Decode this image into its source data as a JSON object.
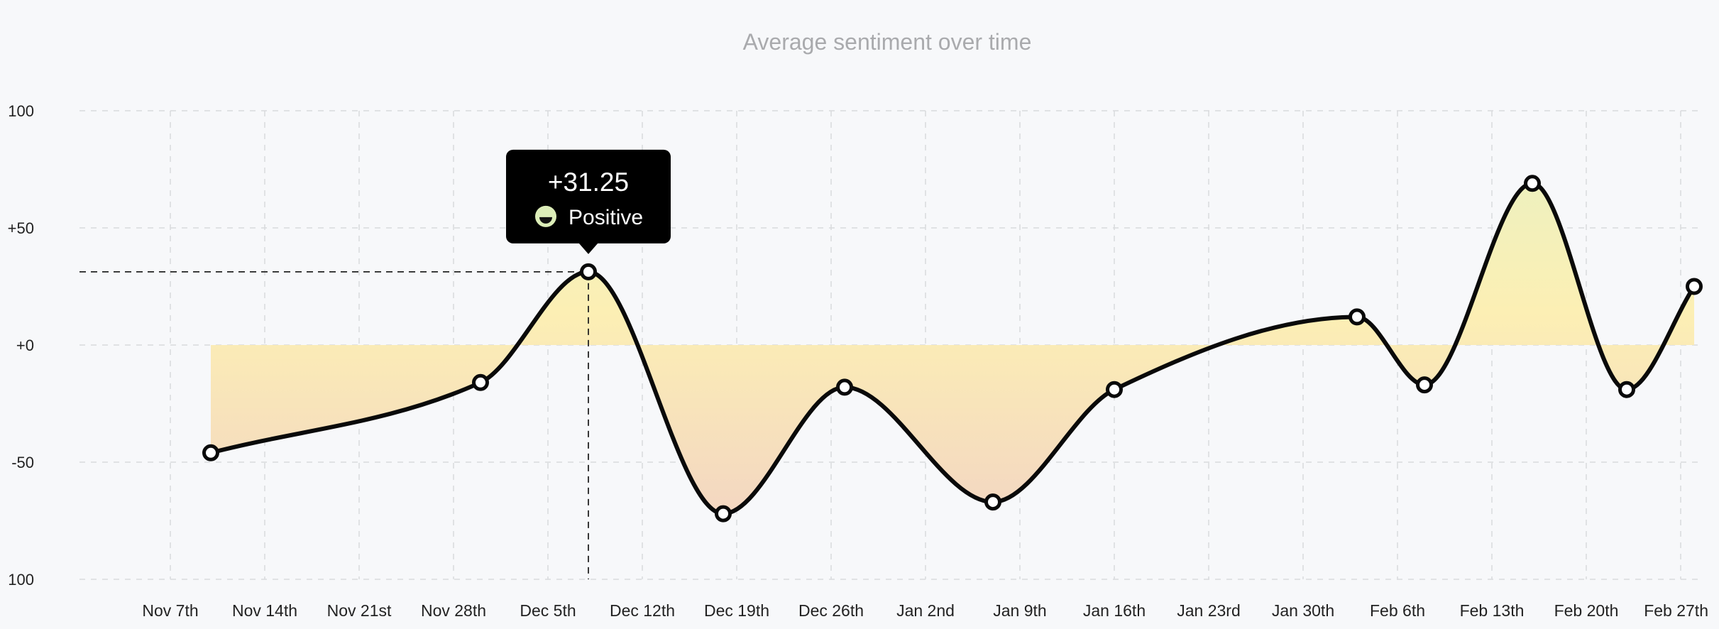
{
  "colors": {
    "background": "#f7f8fa",
    "line": "#0a0a0a",
    "grid": "#d9dadd",
    "fill_top": "#e6f2c4",
    "fill_mid": "#fcefb4",
    "fill_bottom": "#f3d6c2",
    "tooltip_bg": "#000000",
    "sentiment_icon": "#dcedb8"
  },
  "chart_data": {
    "type": "area",
    "title": "Average sentiment over time",
    "ylim": [
      -100,
      100
    ],
    "y_ticks": [
      "100",
      "+50",
      "+0",
      "-50",
      "100"
    ],
    "x_ticks": [
      "Nov 7th",
      "Nov 14th",
      "Nov 21st",
      "Nov 28th",
      "Dec 5th",
      "Dec 12th",
      "Dec 19th",
      "Dec 26th",
      "Jan 2nd",
      "Jan 9th",
      "Jan 16th",
      "Jan 23rd",
      "Jan 30th",
      "Feb 6th",
      "Feb 13th",
      "Feb 20th",
      "Feb 27th"
    ],
    "grid": true,
    "series": [
      {
        "x": [
          "2022-11-10",
          "2022-11-30",
          "2022-12-08",
          "2022-12-18",
          "2022-12-27",
          "2023-01-07",
          "2023-01-16",
          "2023-02-03",
          "2023-02-08",
          "2023-02-16",
          "2023-02-23",
          "2023-02-28"
        ],
        "values": [
          -46,
          -16,
          31.25,
          -72,
          -18,
          -67,
          -19,
          12,
          -17,
          69,
          -19,
          25
        ]
      }
    ],
    "tooltip": {
      "value": "+31.25",
      "label": "Positive",
      "point_index": 2
    }
  }
}
